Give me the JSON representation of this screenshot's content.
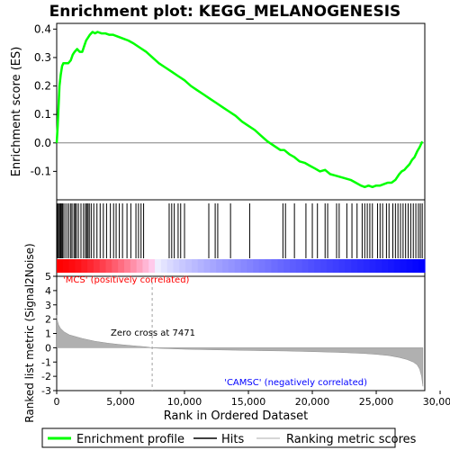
{
  "chart_data": {
    "type": "line",
    "title": "Enrichment plot: KEGG_MELANOGENESIS",
    "es_panel": {
      "ylabel": "Enrichment score (ES)",
      "ylim": [
        -0.2,
        0.42
      ],
      "yticks": [
        -0.1,
        0.0,
        0.1,
        0.2,
        0.3,
        0.4
      ],
      "ytick_labels": [
        "-0.1",
        "0.0",
        "0.1",
        "0.2",
        "0.3",
        "0.4"
      ],
      "series": [
        {
          "name": "Enrichment profile",
          "color": "#00ff00",
          "x": [
            0,
            80,
            150,
            220,
            320,
            420,
            520,
            700,
            900,
            1100,
            1250,
            1400,
            1600,
            1800,
            2000,
            2150,
            2300,
            2450,
            2600,
            2800,
            3000,
            3200,
            3500,
            3800,
            4100,
            4400,
            4700,
            5000,
            5300,
            5600,
            6000,
            6500,
            7000,
            7500,
            8000,
            8500,
            9000,
            9500,
            10000,
            10500,
            11000,
            11500,
            12000,
            12500,
            13000,
            13500,
            14000,
            14500,
            15000,
            15500,
            16000,
            16500,
            17000,
            17500,
            17800,
            18200,
            18600,
            19000,
            19400,
            19800,
            20200,
            20600,
            21000,
            21400,
            21800,
            22200,
            22600,
            23000,
            23400,
            23800,
            24100,
            24400,
            24700,
            25000,
            25300,
            25600,
            25900,
            26200,
            26500,
            26800,
            27000,
            27200,
            27400,
            27600,
            27800,
            28000,
            28200,
            28400,
            28600
          ],
          "y": [
            0.0,
            0.06,
            0.13,
            0.2,
            0.24,
            0.27,
            0.28,
            0.28,
            0.28,
            0.29,
            0.31,
            0.32,
            0.33,
            0.32,
            0.32,
            0.34,
            0.36,
            0.37,
            0.38,
            0.39,
            0.385,
            0.39,
            0.385,
            0.385,
            0.38,
            0.38,
            0.375,
            0.37,
            0.365,
            0.36,
            0.35,
            0.335,
            0.32,
            0.3,
            0.28,
            0.265,
            0.25,
            0.235,
            0.22,
            0.2,
            0.185,
            0.17,
            0.155,
            0.14,
            0.125,
            0.11,
            0.095,
            0.075,
            0.06,
            0.045,
            0.025,
            0.005,
            -0.01,
            -0.025,
            -0.025,
            -0.04,
            -0.05,
            -0.065,
            -0.07,
            -0.08,
            -0.09,
            -0.1,
            -0.095,
            -0.11,
            -0.115,
            -0.12,
            -0.125,
            -0.13,
            -0.14,
            -0.15,
            -0.155,
            -0.15,
            -0.155,
            -0.15,
            -0.15,
            -0.145,
            -0.14,
            -0.14,
            -0.13,
            -0.11,
            -0.1,
            -0.095,
            -0.085,
            -0.075,
            -0.06,
            -0.05,
            -0.03,
            -0.015,
            0.005
          ]
        }
      ]
    },
    "hits": {
      "name": "Hits",
      "positions": [
        40,
        120,
        200,
        280,
        350,
        430,
        500,
        640,
        800,
        950,
        1100,
        1200,
        1350,
        1450,
        1550,
        1700,
        1900,
        2100,
        2250,
        2350,
        2450,
        2550,
        2700,
        2900,
        3150,
        3400,
        3650,
        3900,
        4200,
        4450,
        4650,
        4900,
        5150,
        5500,
        5800,
        6200,
        6400,
        6600,
        6800,
        8800,
        9000,
        9200,
        9500,
        9700,
        10000,
        11900,
        12400,
        12600,
        13600,
        15100,
        17700,
        17900,
        18600,
        19500,
        20000,
        20400,
        21000,
        21200,
        21900,
        22100,
        22700,
        23100,
        23500,
        23900,
        24100,
        24300,
        24500,
        24700,
        25100,
        25300,
        25500,
        25800,
        26000,
        26300,
        26500,
        26700,
        26900,
        27100,
        27300,
        27500,
        27700,
        27900,
        28100,
        28300,
        28450,
        28600
      ]
    },
    "ranked_metric": {
      "ylabel": "Ranked list metric (Signal2Noise)",
      "ylim": [
        -3,
        5
      ],
      "yticks": [
        -3,
        -2,
        -1,
        0,
        1,
        2,
        3,
        4,
        5
      ],
      "ytick_labels": [
        "-3",
        "-2",
        "-1",
        "0",
        "1",
        "2",
        "3",
        "4",
        "5"
      ],
      "x": [
        0,
        50,
        150,
        300,
        600,
        1000,
        2000,
        3000,
        4000,
        5000,
        6000,
        7000,
        7471,
        8000,
        10000,
        12000,
        14000,
        16000,
        18000,
        20000,
        22000,
        24000,
        25000,
        26000,
        26800,
        27400,
        27900,
        28200,
        28400,
        28550,
        28650
      ],
      "values": [
        2.3,
        1.9,
        1.6,
        1.35,
        1.1,
        0.9,
        0.65,
        0.45,
        0.32,
        0.22,
        0.14,
        0.06,
        0.0,
        -0.04,
        -0.1,
        -0.14,
        -0.17,
        -0.2,
        -0.23,
        -0.27,
        -0.32,
        -0.4,
        -0.46,
        -0.55,
        -0.68,
        -0.82,
        -1.0,
        -1.2,
        -1.5,
        -2.0,
        -2.7
      ],
      "zero_cross": 7471,
      "zero_cross_label": "Zero cross at 7471",
      "pos_label": "'MCS' (positively correlated)",
      "neg_label": "'CAMSC' (negatively correlated)"
    },
    "xaxis": {
      "xlabel": "Rank in Ordered Dataset",
      "xlim": [
        0,
        28800
      ],
      "xticks": [
        0,
        5000,
        10000,
        15000,
        20000,
        25000,
        30000
      ],
      "xtick_labels": [
        "0",
        "5,000",
        "10,000",
        "15,000",
        "20,000",
        "25,000",
        "30,000"
      ]
    },
    "legend": {
      "placement": "bottom",
      "items": [
        "Enrichment profile",
        "Hits",
        "Ranking metric scores"
      ]
    },
    "colors": {
      "profile": "#00ff00",
      "hits": "#000000",
      "metric_fill": "#b0b0b0",
      "pos": "#ff0000",
      "neg": "#0000ff",
      "zero_cross_line": "#a0a0a0",
      "pos_label": "#ff0000",
      "neg_label": "#0000ff"
    }
  }
}
